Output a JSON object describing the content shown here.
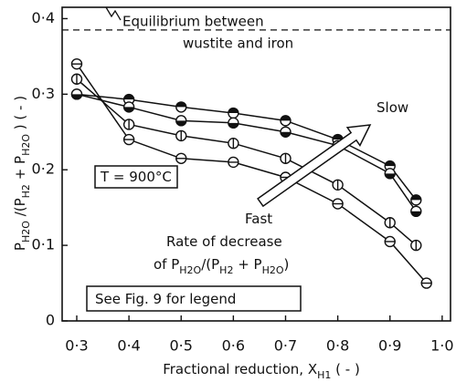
{
  "chart_data": {
    "type": "line",
    "xlim": [
      0.272,
      1.016
    ],
    "ylim": [
      0,
      0.415
    ],
    "xticks": [
      {
        "value": 0.3,
        "label": "0·3"
      },
      {
        "value": 0.4,
        "label": "0·4"
      },
      {
        "value": 0.5,
        "label": "0·5"
      },
      {
        "value": 0.6,
        "label": "0·6"
      },
      {
        "value": 0.7,
        "label": "0·7"
      },
      {
        "value": 0.8,
        "label": "0·8"
      },
      {
        "value": 0.9,
        "label": "0·9"
      },
      {
        "value": 1.0,
        "label": "1·0"
      }
    ],
    "yticks": [
      0,
      {
        "value": 0.1,
        "label": "0·1"
      },
      {
        "value": 0.2,
        "label": "0·2"
      },
      {
        "value": 0.3,
        "label": "0·3"
      },
      {
        "value": 0.4,
        "label": "0·4"
      }
    ],
    "x_label": [
      {
        "text": "Fractional reduction,  X"
      },
      {
        "text": "H1",
        "sub": true
      },
      {
        "text": "  ( - )"
      }
    ],
    "y_label": [
      {
        "text": "P"
      },
      {
        "text": "H2O",
        "sub": true
      },
      {
        "text": " /(P"
      },
      {
        "text": "H2",
        "sub": true
      },
      {
        "text": " + P"
      },
      {
        "text": "H2O",
        "sub": true
      },
      {
        "text": " )     ( - )"
      }
    ],
    "equilibrium": {
      "value": 0.385,
      "label": [
        "Equilibrium between",
        "wustite and iron"
      ]
    },
    "annotations": {
      "temperature": [
        {
          "text": "T = 900°C"
        }
      ],
      "slow": [
        {
          "text": "Slow"
        }
      ],
      "fast": [
        {
          "text": "Fast"
        }
      ],
      "rate_1": [
        {
          "text": "Rate of decrease"
        }
      ],
      "rate_2": [
        {
          "text": "of P"
        },
        {
          "text": "H2O",
          "sub": true
        },
        {
          "text": "/(P"
        },
        {
          "text": "H2",
          "sub": true
        },
        {
          "text": " + P"
        },
        {
          "text": "H2O",
          "sub": true
        },
        {
          "text": ")"
        }
      ],
      "legend_note": [
        {
          "text": "See Fig. 9 for legend"
        }
      ]
    },
    "series": [
      {
        "color": "#111",
        "marker": "half-top",
        "x": [
          0.3,
          0.4,
          0.5,
          0.6,
          0.7,
          0.8,
          0.9,
          0.95
        ],
        "y": [
          0.3,
          0.293,
          0.283,
          0.275,
          0.265,
          0.24,
          0.205,
          0.16
        ]
      },
      {
        "color": "#111",
        "marker": "half-bottom",
        "x": [
          0.3,
          0.4,
          0.5,
          0.6,
          0.7,
          0.8,
          0.9,
          0.95
        ],
        "y": [
          0.3,
          0.283,
          0.265,
          0.262,
          0.25,
          0.232,
          0.195,
          0.145
        ]
      },
      {
        "color": "#111",
        "marker": "bar-v",
        "x": [
          0.3,
          0.4,
          0.5,
          0.6,
          0.7,
          0.8,
          0.9,
          0.95
        ],
        "y": [
          0.32,
          0.26,
          0.245,
          0.235,
          0.215,
          0.18,
          0.13,
          0.1
        ]
      },
      {
        "color": "#111",
        "marker": "bar-h",
        "x": [
          0.3,
          0.4,
          0.5,
          0.6,
          0.7,
          0.8,
          0.9,
          0.97
        ],
        "y": [
          0.34,
          0.24,
          0.215,
          0.21,
          0.19,
          0.155,
          0.105,
          0.05
        ]
      }
    ]
  }
}
